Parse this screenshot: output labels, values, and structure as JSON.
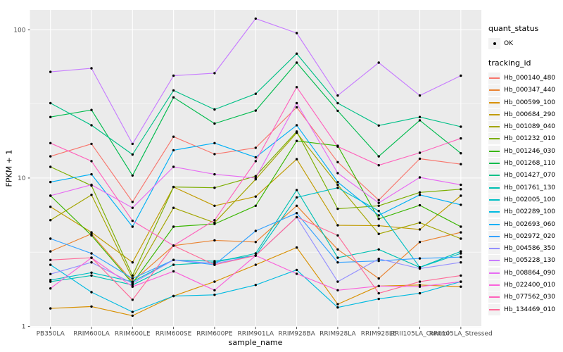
{
  "figure": {
    "y_axis_title": "FPKM + 1",
    "x_axis_title": "sample_name"
  },
  "colors": {
    "panel_bg": "#EBEBEB",
    "grid": "#FFFFFF",
    "tick_text": "#4D4D4D",
    "tick_mark": "#333333",
    "point": "#000000",
    "legend_key_bg": "#F2F2F2"
  },
  "legend": {
    "quant_status": {
      "title": "quant_status",
      "entries": [
        {
          "label": "OK",
          "glyph": "point",
          "color": "#000000"
        }
      ]
    },
    "tracking_id": {
      "title": "tracking_id"
    }
  },
  "chart_data": {
    "type": "line",
    "xlabel": "sample_name",
    "ylabel": "FPKM + 1",
    "y_scale": "log10",
    "ylim": [
      1,
      150
    ],
    "y_breaks": [
      1,
      10,
      100
    ],
    "y_minor_breaks": [
      3.1623,
      31.6228
    ],
    "grid": "on",
    "legend_position": "right",
    "point_marker": "filled-circle",
    "categories": [
      "PB350LA",
      "RRIM600LA",
      "RRIM600LE",
      "RRIM600SE",
      "RRIM600PE",
      "RRIM901LA",
      "RRIM928BA",
      "RRIM928LA",
      "RRIM928LE",
      "RRII105LA_Control",
      "RRII105LA_Stressed"
    ],
    "series": [
      {
        "name": "Hb_000140_480",
        "color": "#F8766D",
        "values": [
          14,
          17,
          6.9,
          19,
          14.5,
          16,
          30,
          12.8,
          7.1,
          13.5,
          12.4
        ]
      },
      {
        "name": "Hb_000347_440",
        "color": "#EA8331",
        "values": [
          3.2,
          4.2,
          2.0,
          3.5,
          3.8,
          3.7,
          6.5,
          3.3,
          2.1,
          3.7,
          4.3
        ]
      },
      {
        "name": "Hb_000599_100",
        "color": "#D89000",
        "values": [
          1.32,
          1.36,
          1.18,
          1.6,
          2.0,
          2.6,
          3.4,
          1.41,
          1.87,
          1.9,
          1.85
        ]
      },
      {
        "name": "Hb_000684_290",
        "color": "#C09B00",
        "values": [
          6.4,
          4.3,
          2.7,
          8.7,
          6.5,
          7.5,
          13.4,
          4.8,
          4.77,
          4.5,
          7.6
        ]
      },
      {
        "name": "Hb_001089_040",
        "color": "#A3A500",
        "values": [
          5.2,
          7.7,
          2.1,
          6.3,
          5.0,
          9.8,
          20.2,
          9.0,
          4.2,
          5.0,
          3.9
        ]
      },
      {
        "name": "Hb_001232_010",
        "color": "#7CAE00",
        "values": [
          11.9,
          8.9,
          2.2,
          8.7,
          8.6,
          10.3,
          20.6,
          6.2,
          6.5,
          8.0,
          8.4
        ]
      },
      {
        "name": "Hb_001246_030",
        "color": "#39B600",
        "values": [
          7.6,
          4.1,
          1.95,
          4.7,
          4.9,
          6.5,
          17.8,
          16.5,
          5.3,
          6.55,
          4.7
        ]
      },
      {
        "name": "Hb_001268_110",
        "color": "#00BB4E",
        "values": [
          25.8,
          28.8,
          10.4,
          35,
          23.3,
          28.5,
          60,
          28.4,
          14,
          24.5,
          14.7
        ]
      },
      {
        "name": "Hb_001427_070",
        "color": "#00C087",
        "values": [
          32,
          22.7,
          14.4,
          39,
          29,
          37,
          69,
          32,
          22.6,
          25.8,
          22.2
        ]
      },
      {
        "name": "Hb_001761_130",
        "color": "#00C0B2",
        "values": [
          2.0,
          2.2,
          1.9,
          2.6,
          2.7,
          3.1,
          8.3,
          2.9,
          3.3,
          2.5,
          3.2
        ]
      },
      {
        "name": "Hb_002005_100",
        "color": "#00BFC4",
        "values": [
          2.05,
          2.3,
          2.0,
          2.8,
          2.75,
          3.0,
          7.4,
          8.6,
          6.0,
          2.5,
          3.1
        ]
      },
      {
        "name": "Hb_002289_100",
        "color": "#00BAE0",
        "values": [
          2.6,
          1.7,
          1.25,
          1.6,
          1.63,
          1.9,
          2.4,
          1.34,
          1.53,
          1.67,
          2.0
        ]
      },
      {
        "name": "Hb_002693_060",
        "color": "#00B0F6",
        "values": [
          9.4,
          10.6,
          4.7,
          15.4,
          17.2,
          13.8,
          22.7,
          9.4,
          5.6,
          7.7,
          6.6
        ]
      },
      {
        "name": "Hb_002972_020",
        "color": "#35A2FF",
        "values": [
          3.9,
          3.1,
          2.1,
          2.8,
          2.6,
          4.4,
          5.8,
          2.7,
          2.76,
          2.87,
          2.93
        ]
      },
      {
        "name": "Hb_004586_350",
        "color": "#9590FF",
        "values": [
          2.25,
          2.7,
          1.95,
          2.8,
          2.65,
          3.0,
          5.45,
          2.0,
          2.85,
          2.45,
          2.7
        ]
      },
      {
        "name": "Hb_005228_130",
        "color": "#C77CFF",
        "values": [
          52,
          55,
          17,
          49,
          51,
          119,
          95,
          36,
          60,
          36,
          49
        ]
      },
      {
        "name": "Hb_008864_090",
        "color": "#E76BF3",
        "values": [
          7.6,
          9.0,
          6.3,
          11.9,
          10.6,
          10.0,
          32,
          10.8,
          6.8,
          10.1,
          9.0
        ]
      },
      {
        "name": "Hb_022400_010",
        "color": "#FA62DB",
        "values": [
          1.8,
          2.9,
          1.85,
          2.35,
          1.75,
          3.0,
          2.26,
          1.75,
          1.87,
          1.85,
          2.0
        ]
      },
      {
        "name": "Hb_077562_030",
        "color": "#FF62BC",
        "values": [
          17.2,
          13,
          5.15,
          3.5,
          5.2,
          13,
          41,
          16.3,
          12.2,
          14.8,
          18.5
        ]
      },
      {
        "name": "Hb_134469_010",
        "color": "#FF6A98",
        "values": [
          2.8,
          2.9,
          1.51,
          3.5,
          2.6,
          3.0,
          5.45,
          4.1,
          1.67,
          2.0,
          2.2
        ]
      }
    ]
  }
}
